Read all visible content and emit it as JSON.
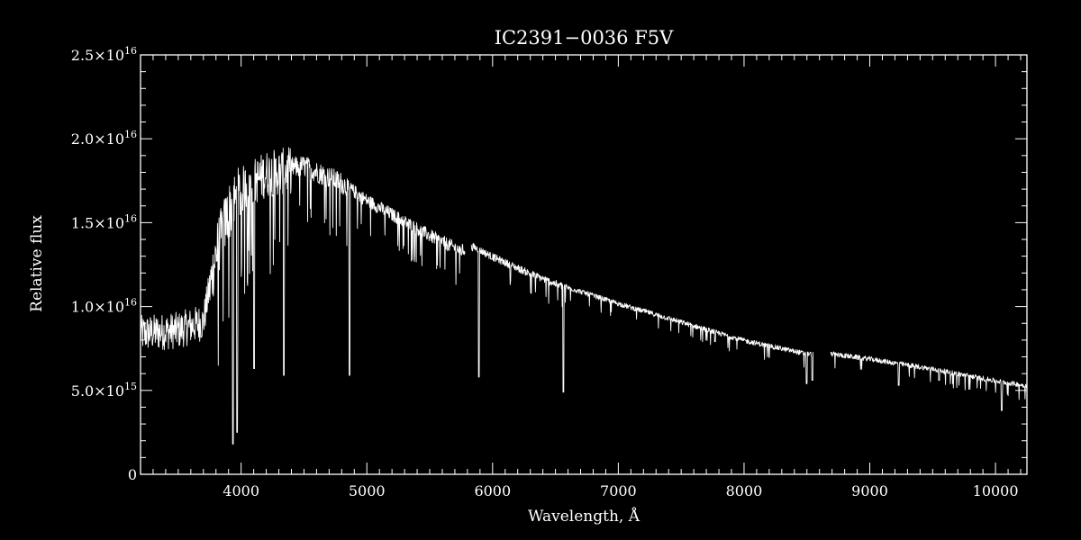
{
  "chart_data": {
    "type": "line",
    "title": "IC2391−0036  F5V",
    "xlabel": "Wavelength, Å",
    "ylabel": "Relative flux",
    "xlim": [
      3200,
      10250
    ],
    "ylim": [
      0,
      2.5e+16
    ],
    "x_ticks": [
      4000,
      5000,
      6000,
      7000,
      8000,
      9000,
      10000
    ],
    "x_tick_labels": [
      "4000",
      "5000",
      "6000",
      "7000",
      "8000",
      "9000",
      "10000"
    ],
    "y_ticks": [
      0,
      5000000000000000.0,
      1e+16,
      1.5e+16,
      2e+16,
      2.5e+16
    ],
    "y_tick_labels": [
      {
        "mant": "0",
        "exp": ""
      },
      {
        "mant": "5.0×10",
        "exp": "15"
      },
      {
        "mant": "1.0×10",
        "exp": "16"
      },
      {
        "mant": "1.5×10",
        "exp": "16"
      },
      {
        "mant": "2.0×10",
        "exp": "16"
      },
      {
        "mant": "2.5×10",
        "exp": "16"
      }
    ],
    "line_color": "#ffffff",
    "background": "#000000",
    "gaps": [
      [
        5780,
        5830
      ],
      [
        8550,
        8690
      ]
    ],
    "continuum": [
      [
        3200,
        8600000000000000.0
      ],
      [
        3500,
        8800000000000000.0
      ],
      [
        3700,
        9300000000000000.0
      ],
      [
        3800,
        1.35e+16
      ],
      [
        3900,
        1.6e+16
      ],
      [
        4000,
        1.72e+16
      ],
      [
        4200,
        1.82e+16
      ],
      [
        4500,
        1.85e+16
      ],
      [
        4800,
        1.75e+16
      ],
      [
        4850,
        1.72e+16
      ],
      [
        5000,
        1.64e+16
      ],
      [
        5500,
        1.43e+16
      ],
      [
        5750,
        1.34e+16
      ],
      [
        5850,
        1.36e+16
      ],
      [
        6000,
        1.3e+16
      ],
      [
        6300,
        1.2e+16
      ],
      [
        6500,
        1.14e+16
      ],
      [
        7000,
        1.02e+16
      ],
      [
        7500,
        9100000000000000.0
      ],
      [
        8000,
        8000000000000000.0
      ],
      [
        8500,
        7200000000000000.0
      ],
      [
        8700,
        7200000000000000.0
      ],
      [
        9000,
        6900000000000000.0
      ],
      [
        9500,
        6300000000000000.0
      ],
      [
        10000,
        5600000000000000.0
      ],
      [
        10250,
        5300000000000000.0
      ]
    ],
    "absorption_lines": [
      {
        "x": 3934,
        "depth_to": 1800000000000000.0
      },
      {
        "x": 3968,
        "depth_to": 2500000000000000.0
      },
      {
        "x": 4102,
        "depth_to": 6300000000000000.0
      },
      {
        "x": 4340,
        "depth_to": 5900000000000000.0
      },
      {
        "x": 4861,
        "depth_to": 5900000000000000.0
      },
      {
        "x": 5890,
        "depth_to": 5800000000000000.0
      },
      {
        "x": 6563,
        "depth_to": 4900000000000000.0
      },
      {
        "x": 7770,
        "depth_to": 7900000000000000.0
      },
      {
        "x": 8498,
        "depth_to": 5400000000000000.0
      },
      {
        "x": 8542,
        "depth_to": 5600000000000000.0
      },
      {
        "x": 8662,
        "depth_to": 6200000000000000.0
      },
      {
        "x": 9230,
        "depth_to": 5300000000000000.0
      },
      {
        "x": 9550,
        "depth_to": 5600000000000000.0
      },
      {
        "x": 10050,
        "depth_to": 3800000000000000.0
      }
    ],
    "grid": false,
    "legend": "none"
  }
}
